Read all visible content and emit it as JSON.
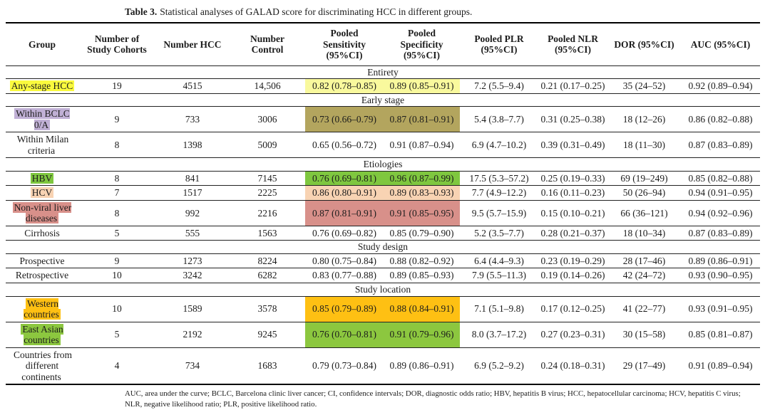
{
  "title": {
    "label": "Table 3.",
    "text": "Statistical analyses of GALAD score for discriminating HCC in different groups."
  },
  "columns": [
    "Group",
    "Number of\nStudy Cohorts",
    "Number HCC",
    "Number\nControl",
    "Pooled\nSensitivity\n(95%CI)",
    "Pooled\nSpecificity\n(95%CI)",
    "Pooled PLR\n(95%CI)",
    "Pooled NLR\n(95%CI)",
    "DOR (95%CI)",
    "AUC (95%CI)"
  ],
  "highlight_note_colors": {
    "yellow_group": "#fafa3e",
    "yellow_cells": "#f9f99d",
    "purple_group": "#c0b0d5",
    "khaki_cells": "#b3a55e",
    "hbv_green": "#7fc73f",
    "peach": "#f8d3b3",
    "rose": "#d8908a",
    "orange": "#fec013",
    "east_green": "#8cc73f"
  },
  "sections": [
    {
      "header": "Entirety",
      "rows": [
        {
          "group": "Any-stage HCC",
          "group_hl": "#fafa3e",
          "cells_hl": "#f9f99d",
          "cohorts": "19",
          "hcc": "4515",
          "control": "14,506",
          "sensitivity": "0.82 (0.78–0.85)",
          "specificity": "0.89 (0.85–0.91)",
          "plr": "7.2 (5.5–9.4)",
          "nlr": "0.21 (0.17–0.25)",
          "dor": "35 (24–52)",
          "auc": "0.92 (0.89–0.94)"
        }
      ]
    },
    {
      "header": "Early stage",
      "rows": [
        {
          "group": "Within BCLC\n0/A",
          "group_hl": "#c0b0d5",
          "cells_hl": "#b3a55e",
          "cohorts": "9",
          "hcc": "733",
          "control": "3006",
          "sensitivity": "0.73 (0.66–0.79)",
          "specificity": "0.87 (0.81–0.91)",
          "plr": "5.4 (3.8–7.7)",
          "nlr": "0.31 (0.25–0.38)",
          "dor": "18 (12–26)",
          "auc": "0.86 (0.82–0.88)"
        },
        {
          "group": "Within Milan\ncriteria",
          "group_hl": null,
          "cells_hl": null,
          "cohorts": "8",
          "hcc": "1398",
          "control": "5009",
          "sensitivity": "0.65 (0.56–0.72)",
          "specificity": "0.91 (0.87–0.94)",
          "plr": "6.9 (4.7–10.2)",
          "nlr": "0.39 (0.31–0.49)",
          "dor": "18 (11–30)",
          "auc": "0.87 (0.83–0.89)"
        }
      ]
    },
    {
      "header": "Etiologies",
      "rows": [
        {
          "group": "HBV",
          "group_hl": "#7fc73f",
          "cells_hl": "#7fc73f",
          "cohorts": "8",
          "hcc": "841",
          "control": "7145",
          "sensitivity": "0.76 (0.69–0.81)",
          "specificity": "0.96 (0.87–0.99)",
          "plr": "17.5 (5.3–57.2)",
          "nlr": "0.25 (0.19–0.33)",
          "dor": "69 (19–249)",
          "auc": "0.85 (0.82–0.88)"
        },
        {
          "group": "HCV",
          "group_hl": "#f8d3b3",
          "cells_hl": "#f8d3b3",
          "cohorts": "7",
          "hcc": "1517",
          "control": "2225",
          "sensitivity": "0.86 (0.80–0.91)",
          "specificity": "0.89 (0.83–0.93)",
          "plr": "7.7 (4.9–12.2)",
          "nlr": "0.16 (0.11–0.23)",
          "dor": "50 (26–94)",
          "auc": "0.94 (0.91–0.95)"
        },
        {
          "group": "Non-viral liver\ndiseases",
          "group_hl": "#d8908a",
          "cells_hl": "#d8908a",
          "cohorts": "8",
          "hcc": "992",
          "control": "2216",
          "sensitivity": "0.87 (0.81–0.91)",
          "specificity": "0.91 (0.85–0.95)",
          "plr": "9.5 (5.7–15.9)",
          "nlr": "0.15 (0.10–0.21)",
          "dor": "66 (36–121)",
          "auc": "0.94 (0.92–0.96)"
        },
        {
          "group": "Cirrhosis",
          "group_hl": null,
          "cells_hl": null,
          "cohorts": "5",
          "hcc": "555",
          "control": "1563",
          "sensitivity": "0.76 (0.69–0.82)",
          "specificity": "0.85 (0.79–0.90)",
          "plr": "5.2 (3.5–7.7)",
          "nlr": "0.28 (0.21–0.37)",
          "dor": "18 (10–34)",
          "auc": "0.87 (0.83–0.89)"
        }
      ]
    },
    {
      "header": "Study design",
      "rows": [
        {
          "group": "Prospective",
          "group_hl": null,
          "cells_hl": null,
          "cohorts": "9",
          "hcc": "1273",
          "control": "8224",
          "sensitivity": "0.80 (0.75–0.84)",
          "specificity": "0.88 (0.82–0.92)",
          "plr": "6.4 (4.4–9.3)",
          "nlr": "0.23 (0.19–0.29)",
          "dor": "28 (17–46)",
          "auc": "0.89 (0.86–0.91)"
        },
        {
          "group": "Retrospective",
          "group_hl": null,
          "cells_hl": null,
          "cohorts": "10",
          "hcc": "3242",
          "control": "6282",
          "sensitivity": "0.83 (0.77–0.88)",
          "specificity": "0.89 (0.85–0.93)",
          "plr": "7.9 (5.5–11.3)",
          "nlr": "0.19 (0.14–0.26)",
          "dor": "42 (24–72)",
          "auc": "0.93 (0.90–0.95)"
        }
      ]
    },
    {
      "header": "Study location",
      "rows": [
        {
          "group": "Western\ncountries",
          "group_hl": "#fec013",
          "cells_hl": "#fec013",
          "cohorts": "10",
          "hcc": "1589",
          "control": "3578",
          "sensitivity": "0.85 (0.79–0.89)",
          "specificity": "0.88 (0.84–0.91)",
          "plr": "7.1 (5.1–9.8)",
          "nlr": "0.17 (0.12–0.25)",
          "dor": "41 (22–77)",
          "auc": "0.93 (0.91–0.95)"
        },
        {
          "group": "East Asian\ncountries",
          "group_hl": "#8cc73f",
          "cells_hl": "#8cc73f",
          "cohorts": "5",
          "hcc": "2192",
          "control": "9245",
          "sensitivity": "0.76 (0.70–0.81)",
          "specificity": "0.91 (0.79–0.96)",
          "plr": "8.0 (3.7–17.2)",
          "nlr": "0.27 (0.23–0.31)",
          "dor": "30 (15–58)",
          "auc": "0.85 (0.81–0.87)"
        },
        {
          "group": "Countries from\ndifferent\ncontinents",
          "group_hl": null,
          "cells_hl": null,
          "cohorts": "4",
          "hcc": "734",
          "control": "1683",
          "sensitivity": "0.79 (0.73–0.84)",
          "specificity": "0.89 (0.86–0.91)",
          "plr": "6.9 (5.2–9.2)",
          "nlr": "0.24 (0.18–0.31)",
          "dor": "29 (17–49)",
          "auc": "0.91 (0.89–0.94)"
        }
      ]
    }
  ],
  "footnote": "AUC, area under the curve; BCLC, Barcelona clinic liver cancer; CI, confidence intervals; DOR, diagnostic odds ratio; HBV, hepatitis B virus; HCC, hepatocellular carcinoma; HCV, hepatitis C virus; NLR, negative likelihood ratio; PLR, positive likelihood ratio."
}
